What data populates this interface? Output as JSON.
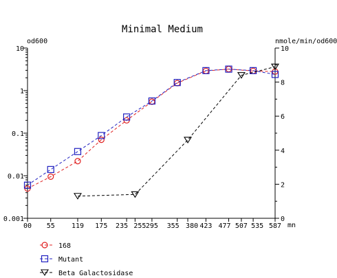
{
  "chart_data": {
    "type": "line",
    "title": "Minimal Medium",
    "ylabel_left": "od600",
    "ylabel_right": "nmole/min/od600",
    "xlabel": "mn",
    "x_ticks": [
      0,
      55,
      119,
      175,
      235,
      255,
      295,
      355,
      380,
      423,
      477,
      507,
      535,
      587
    ],
    "x_tick_labels": [
      "00",
      "55",
      "119",
      "175",
      "235",
      "255",
      "295",
      "355",
      "380",
      "423",
      "477",
      "507",
      "535",
      "587"
    ],
    "xlim": [
      0,
      587
    ],
    "y_left": {
      "scale": "log",
      "lim": [
        0.001,
        10
      ],
      "tick_labels": [
        "0.001",
        "0.01",
        "0.1",
        "1",
        "10"
      ]
    },
    "y_right": {
      "scale": "linear",
      "lim": [
        0,
        10
      ],
      "tick_labels": [
        "0",
        "2",
        "4",
        "6",
        "8",
        "10"
      ]
    },
    "series": [
      {
        "name": "168",
        "axis": "left",
        "color": "#e02020",
        "marker": "circle",
        "x": [
          0,
          55,
          119,
          175,
          235,
          295,
          355,
          423,
          477,
          535,
          587
        ],
        "y": [
          0.005,
          0.0095,
          0.022,
          0.07,
          0.2,
          0.55,
          1.5,
          2.9,
          3.2,
          2.9,
          2.8
        ]
      },
      {
        "name": "Mutant",
        "axis": "left",
        "color": "#2020c0",
        "marker": "square",
        "x": [
          0,
          55,
          119,
          175,
          235,
          295,
          355,
          423,
          477,
          535,
          587
        ],
        "y": [
          0.006,
          0.014,
          0.037,
          0.088,
          0.24,
          0.57,
          1.55,
          2.95,
          3.2,
          2.95,
          2.4
        ]
      },
      {
        "name": "Beta Galactosidase",
        "axis": "right",
        "color": "#000000",
        "marker": "triangle-down",
        "x": [
          119,
          255,
          380,
          507,
          587
        ],
        "y": [
          1.3,
          1.4,
          4.6,
          8.4,
          8.9
        ]
      }
    ]
  }
}
